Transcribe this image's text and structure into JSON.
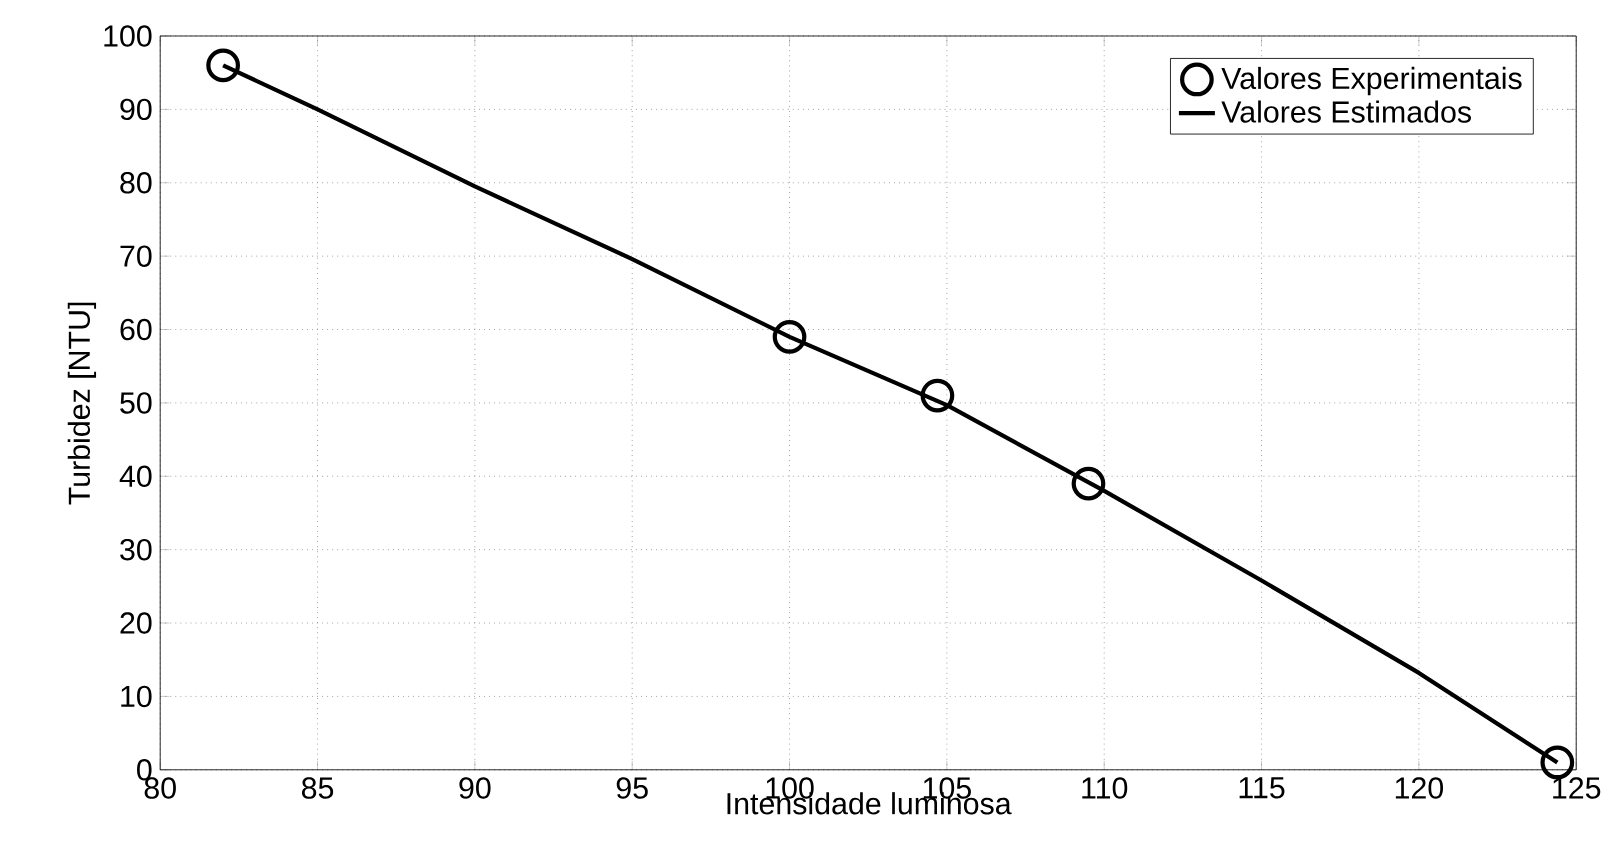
{
  "chart_data": {
    "type": "line",
    "xlabel": "Intensidade luminosa",
    "ylabel": "Turbidez [NTU]",
    "xlim": [
      80,
      125
    ],
    "xticks": [
      80,
      85,
      90,
      95,
      100,
      105,
      110,
      115,
      120,
      125
    ],
    "ylim": [
      0,
      100
    ],
    "yticks": [
      0,
      10,
      20,
      30,
      40,
      50,
      60,
      70,
      80,
      90,
      100
    ],
    "grid": true,
    "legend": "top right",
    "series": [
      {
        "name": "Valores Experimentais",
        "type": "scatter",
        "marker": "circle",
        "color": "#000000",
        "x": [
          82,
          100,
          104.7,
          109.5,
          124.4
        ],
        "values": [
          96,
          59,
          51,
          39,
          1
        ]
      },
      {
        "name": "Valores Estimados",
        "marker": "none",
        "line_style": "solid",
        "color": "#000000",
        "x": [
          82,
          85,
          90,
          95,
          100,
          105,
          110,
          115,
          120,
          124.4
        ],
        "values": [
          96,
          90,
          79.5,
          69.6,
          59,
          49.7,
          38,
          25.8,
          13.2,
          1
        ]
      }
    ]
  }
}
